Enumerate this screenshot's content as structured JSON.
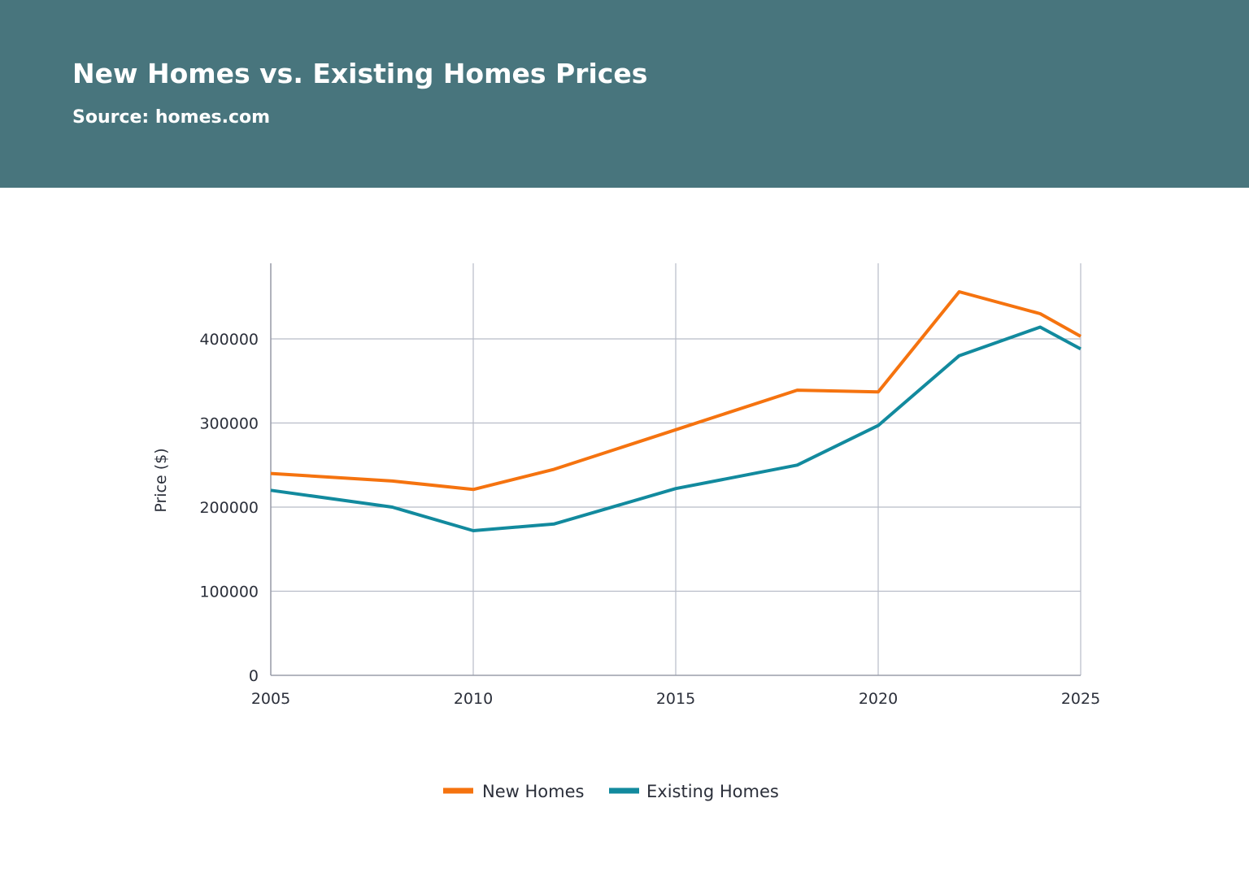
{
  "header": {
    "title": "New Homes vs. Existing Homes Prices",
    "subtitle": "Source: homes.com",
    "background_color": "#48757d"
  },
  "chart_data": {
    "type": "line",
    "title": "New Homes vs. Existing Homes Prices",
    "subtitle": "Source: homes.com",
    "xlabel": "",
    "ylabel": "Price ($)",
    "xlim": [
      2005,
      2025
    ],
    "ylim": [
      0,
      480000
    ],
    "x_ticks": [
      2005,
      2010,
      2015,
      2020,
      2025
    ],
    "y_ticks": [
      0,
      100000,
      200000,
      300000,
      400000
    ],
    "x_tick_labels": [
      "2005",
      "2010",
      "2015",
      "2020",
      "2025"
    ],
    "y_tick_labels": [
      "0",
      "100000",
      "200000",
      "300000",
      "400000"
    ],
    "grid": true,
    "legend_position": "bottom",
    "series": [
      {
        "name": "New Homes",
        "color": "#f5730f",
        "x": [
          2005,
          2008,
          2010,
          2012,
          2015,
          2018,
          2020,
          2022,
          2024,
          2025
        ],
        "values": [
          240000,
          231000,
          221000,
          245000,
          292000,
          339000,
          337000,
          456000,
          430000,
          403000
        ]
      },
      {
        "name": "Existing Homes",
        "color": "#128a9e",
        "x": [
          2005,
          2008,
          2010,
          2012,
          2015,
          2018,
          2020,
          2022,
          2024,
          2025
        ],
        "values": [
          220000,
          200000,
          172000,
          180000,
          222000,
          250000,
          297000,
          380000,
          414000,
          388000
        ]
      }
    ]
  }
}
